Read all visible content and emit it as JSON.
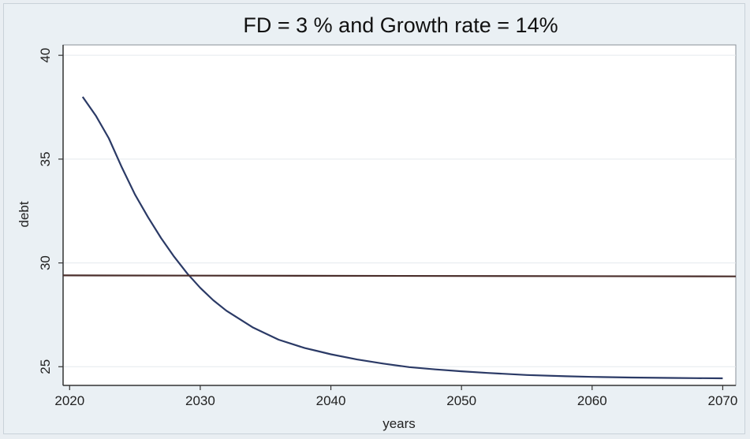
{
  "chart_data": {
    "type": "line",
    "title": "FD = 3 % and Growth rate = 14%",
    "xlabel": "years",
    "ylabel": "debt",
    "xlim": [
      2019.5,
      2071
    ],
    "ylim": [
      24.1,
      40.5
    ],
    "xticks": [
      2020,
      2030,
      2040,
      2050,
      2060,
      2070
    ],
    "yticks": [
      25,
      30,
      35,
      40
    ],
    "grid": true,
    "legend": "none",
    "series": [
      {
        "color": "#2b3a66",
        "x": [
          2021,
          2022,
          2023,
          2024,
          2025,
          2026,
          2027,
          2028,
          2029,
          2030,
          2031,
          2032,
          2033,
          2034,
          2035,
          2036,
          2037,
          2038,
          2039,
          2040,
          2042,
          2044,
          2046,
          2048,
          2050,
          2052,
          2055,
          2058,
          2060,
          2063,
          2066,
          2068,
          2070
        ],
        "y": [
          38.0,
          37.1,
          36.0,
          34.6,
          33.3,
          32.2,
          31.2,
          30.3,
          29.5,
          28.8,
          28.2,
          27.7,
          27.3,
          26.9,
          26.6,
          26.3,
          26.1,
          25.9,
          25.75,
          25.6,
          25.35,
          25.15,
          24.98,
          24.87,
          24.78,
          24.7,
          24.6,
          24.54,
          24.51,
          24.48,
          24.46,
          24.45,
          24.44
        ]
      },
      {
        "color": "#4a2e2b",
        "x": [
          2019.5,
          2071
        ],
        "y": [
          29.4,
          29.35
        ]
      }
    ]
  }
}
